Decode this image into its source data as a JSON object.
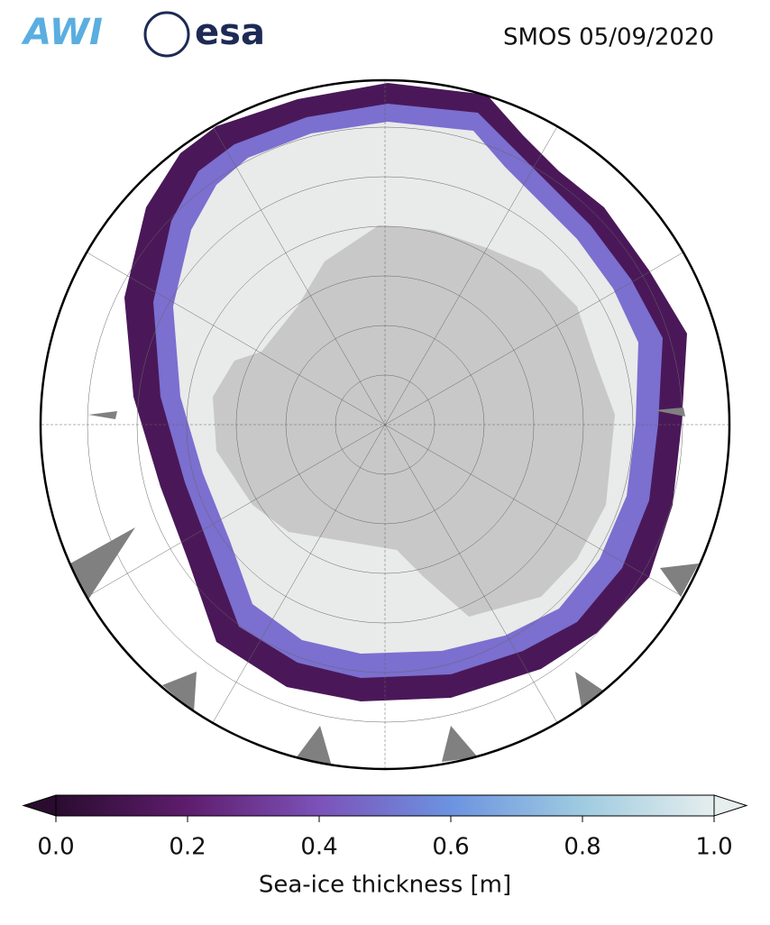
{
  "header": {
    "logos": [
      "AWI",
      "esa"
    ],
    "title": "SMOS 05/09/2020"
  },
  "colorbar": {
    "label": "Sea-ice thickness [m]",
    "lim": [
      0,
      1
    ],
    "ticks": [
      {
        "value": 0,
        "label": "0.0"
      },
      {
        "value": 0.2,
        "label": "0.2"
      },
      {
        "value": 0.4,
        "label": "0.4"
      },
      {
        "value": 0.6,
        "label": "0.6"
      },
      {
        "value": 0.8,
        "label": "0.8"
      },
      {
        "value": 1,
        "label": "1.0"
      }
    ],
    "colors": [
      "#2a0c2f",
      "#5e1d6d",
      "#7c52b8",
      "#6c93e0",
      "#9fcbe0",
      "#e6eeee"
    ]
  }
}
